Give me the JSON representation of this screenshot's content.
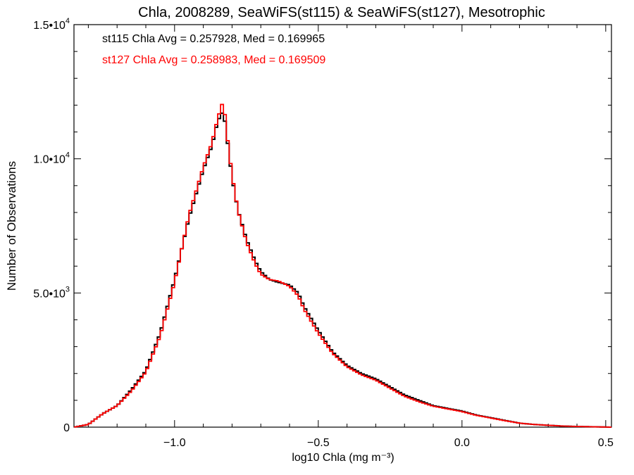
{
  "chart_data": {
    "type": "line",
    "title": "Chla, 2008289, SeaWiFS(st115) & SeaWiFS(st127), Mesotrophic",
    "xlabel": "log10 Chla (mg m⁻³)",
    "ylabel": "Number of Observations",
    "xlim": [
      -1.35,
      0.52
    ],
    "ylim": [
      0,
      15000
    ],
    "xticks": [
      -1.0,
      -0.5,
      0.0,
      0.5
    ],
    "xtick_labels": [
      "−1.0",
      "−0.5",
      "0.0",
      "0.5"
    ],
    "yticks": [
      0,
      5000,
      10000,
      15000
    ],
    "ytick_labels": [
      {
        "mantissa": "0",
        "exponent": ""
      },
      {
        "mantissa": "5.0•10",
        "exponent": "3"
      },
      {
        "mantissa": "1.0•10",
        "exponent": "4"
      },
      {
        "mantissa": "1.5•10",
        "exponent": "4"
      }
    ],
    "grid": false,
    "annotations": [
      "st115 Chla Avg = 0.257928, Med = 0.169965",
      "st127 Chla Avg = 0.258983, Med = 0.169509"
    ],
    "series": [
      {
        "color": "#000000",
        "x": [
          -1.35,
          -1.3,
          -1.25,
          -1.2,
          -1.15,
          -1.1,
          -1.05,
          -1.0,
          -0.95,
          -0.9,
          -0.87,
          -0.85,
          -0.83,
          -0.82,
          -0.8,
          -0.78,
          -0.75,
          -0.72,
          -0.7,
          -0.67,
          -0.64,
          -0.6,
          -0.57,
          -0.55,
          -0.5,
          -0.45,
          -0.4,
          -0.35,
          -0.3,
          -0.25,
          -0.2,
          -0.15,
          -0.1,
          -0.05,
          0.0,
          0.05,
          0.1,
          0.15,
          0.2,
          0.25,
          0.3,
          0.35,
          0.4,
          0.45,
          0.52
        ],
        "y": [
          0,
          100,
          500,
          800,
          1400,
          2100,
          3500,
          5500,
          7800,
          9600,
          10500,
          11400,
          11800,
          11000,
          9300,
          8100,
          7000,
          6200,
          5800,
          5500,
          5400,
          5300,
          5000,
          4500,
          3600,
          2800,
          2300,
          2000,
          1800,
          1500,
          1200,
          1000,
          800,
          700,
          600,
          450,
          350,
          250,
          150,
          100,
          70,
          40,
          25,
          15,
          0
        ]
      },
      {
        "color": "#ff0000",
        "x": [
          -1.35,
          -1.3,
          -1.25,
          -1.2,
          -1.15,
          -1.1,
          -1.05,
          -1.0,
          -0.95,
          -0.9,
          -0.87,
          -0.85,
          -0.83,
          -0.82,
          -0.8,
          -0.78,
          -0.75,
          -0.72,
          -0.7,
          -0.67,
          -0.64,
          -0.6,
          -0.57,
          -0.55,
          -0.5,
          -0.45,
          -0.4,
          -0.35,
          -0.3,
          -0.25,
          -0.2,
          -0.15,
          -0.1,
          -0.05,
          0.0,
          0.05,
          0.1,
          0.15,
          0.2,
          0.25,
          0.3,
          0.35,
          0.4,
          0.45,
          0.52
        ],
        "y": [
          0,
          100,
          500,
          800,
          1350,
          2050,
          3400,
          5400,
          7900,
          9700,
          10600,
          11500,
          12200,
          11100,
          9400,
          8100,
          6900,
          6100,
          5700,
          5500,
          5450,
          5250,
          4900,
          4400,
          3500,
          2750,
          2250,
          1950,
          1750,
          1450,
          1150,
          950,
          780,
          680,
          580,
          440,
          340,
          240,
          150,
          100,
          70,
          40,
          25,
          15,
          0
        ]
      }
    ]
  }
}
